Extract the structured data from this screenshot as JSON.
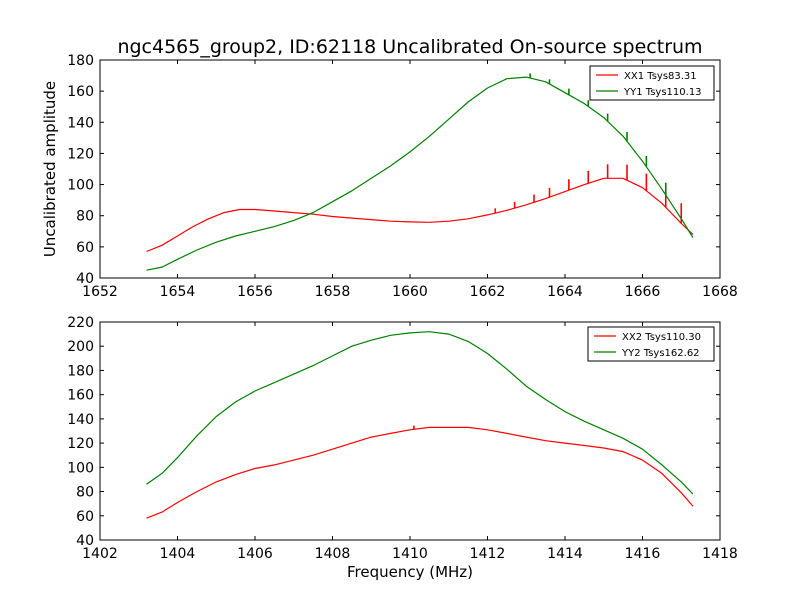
{
  "figure": {
    "title": "ngc4565_group2, ID:62118 Uncalibrated On-source spectrum",
    "xlabel": "Frequency (MHz)"
  },
  "chart_data": [
    {
      "type": "line",
      "title": "ngc4565_group2, ID:62118 Uncalibrated On-source spectrum",
      "xlabel": "",
      "ylabel": "Uncalibrated amplitude",
      "xlim": [
        1652,
        1668
      ],
      "ylim": [
        40,
        180
      ],
      "xticks": [
        1652,
        1654,
        1656,
        1658,
        1660,
        1662,
        1664,
        1666,
        1668
      ],
      "yticks": [
        40,
        60,
        80,
        100,
        120,
        140,
        160,
        180
      ],
      "legend_position": "top-right",
      "grid": false,
      "series": [
        {
          "name": "XX1 Tsys83.31",
          "color": "#ff0000",
          "points": [
            [
              1653.2,
              57
            ],
            [
              1653.6,
              61
            ],
            [
              1654.0,
              67
            ],
            [
              1654.4,
              73
            ],
            [
              1654.8,
              78
            ],
            [
              1655.2,
              82
            ],
            [
              1655.6,
              84
            ],
            [
              1656.0,
              84
            ],
            [
              1656.5,
              83
            ],
            [
              1657.0,
              82
            ],
            [
              1657.5,
              81
            ],
            [
              1658.0,
              79.5
            ],
            [
              1658.5,
              78.5
            ],
            [
              1659.0,
              77.5
            ],
            [
              1659.5,
              76.5
            ],
            [
              1660.0,
              76
            ],
            [
              1660.5,
              75.8
            ],
            [
              1661.0,
              76.5
            ],
            [
              1661.5,
              78
            ],
            [
              1662.0,
              80.5
            ],
            [
              1662.5,
              83.5
            ],
            [
              1663.0,
              87
            ],
            [
              1663.5,
              91
            ],
            [
              1664.0,
              95.5
            ],
            [
              1664.5,
              100
            ],
            [
              1665.0,
              104
            ],
            [
              1665.5,
              104
            ],
            [
              1666.0,
              98
            ],
            [
              1666.5,
              88
            ],
            [
              1667.0,
              75
            ],
            [
              1667.3,
              68
            ]
          ],
          "spikes": [
            [
              1662.2,
              3
            ],
            [
              1662.7,
              4
            ],
            [
              1663.2,
              5
            ],
            [
              1663.6,
              6
            ],
            [
              1664.1,
              7
            ],
            [
              1664.6,
              8
            ],
            [
              1665.1,
              9
            ],
            [
              1665.6,
              10
            ],
            [
              1666.1,
              11
            ],
            [
              1666.6,
              12
            ],
            [
              1667.0,
              13
            ]
          ]
        },
        {
          "name": "YY1 Tsys110.13",
          "color": "#008000",
          "points": [
            [
              1653.2,
              45
            ],
            [
              1653.6,
              47
            ],
            [
              1654.0,
              52
            ],
            [
              1654.5,
              58
            ],
            [
              1655.0,
              63
            ],
            [
              1655.5,
              67
            ],
            [
              1656.0,
              70
            ],
            [
              1656.5,
              73
            ],
            [
              1657.0,
              77
            ],
            [
              1657.5,
              82
            ],
            [
              1658.0,
              89
            ],
            [
              1658.5,
              96
            ],
            [
              1659.0,
              104
            ],
            [
              1659.5,
              112
            ],
            [
              1660.0,
              121
            ],
            [
              1660.5,
              131
            ],
            [
              1661.0,
              142
            ],
            [
              1661.5,
              153
            ],
            [
              1662.0,
              162
            ],
            [
              1662.5,
              168
            ],
            [
              1663.0,
              169
            ],
            [
              1663.5,
              166
            ],
            [
              1664.0,
              159
            ],
            [
              1664.5,
              152
            ],
            [
              1665.0,
              143
            ],
            [
              1665.5,
              131
            ],
            [
              1666.0,
              115
            ],
            [
              1666.5,
              97
            ],
            [
              1667.0,
              78
            ],
            [
              1667.3,
              66
            ]
          ],
          "spikes": [
            [
              1663.1,
              3
            ],
            [
              1663.6,
              3
            ],
            [
              1664.1,
              4
            ],
            [
              1664.6,
              4
            ],
            [
              1665.1,
              5
            ],
            [
              1665.6,
              6
            ],
            [
              1666.1,
              7
            ],
            [
              1666.6,
              8
            ]
          ]
        }
      ]
    },
    {
      "type": "line",
      "title": "",
      "xlabel": "Frequency (MHz)",
      "ylabel": "",
      "xlim": [
        1402,
        1418
      ],
      "ylim": [
        40,
        220
      ],
      "xticks": [
        1402,
        1404,
        1406,
        1408,
        1410,
        1412,
        1414,
        1416,
        1418
      ],
      "yticks": [
        40,
        60,
        80,
        100,
        120,
        140,
        160,
        180,
        200,
        220
      ],
      "legend_position": "top-right",
      "grid": false,
      "series": [
        {
          "name": "XX2 Tsys110.30",
          "color": "#ff0000",
          "points": [
            [
              1403.2,
              58
            ],
            [
              1403.6,
              63
            ],
            [
              1404.0,
              71
            ],
            [
              1404.5,
              80
            ],
            [
              1405.0,
              88
            ],
            [
              1405.5,
              94
            ],
            [
              1406.0,
              99
            ],
            [
              1406.5,
              102
            ],
            [
              1407.0,
              106
            ],
            [
              1407.5,
              110
            ],
            [
              1408.0,
              115
            ],
            [
              1408.5,
              120
            ],
            [
              1409.0,
              125
            ],
            [
              1409.5,
              128
            ],
            [
              1410.0,
              131
            ],
            [
              1410.5,
              133
            ],
            [
              1411.0,
              133
            ],
            [
              1411.5,
              133
            ],
            [
              1412.0,
              131
            ],
            [
              1412.5,
              128
            ],
            [
              1413.0,
              125
            ],
            [
              1413.5,
              122
            ],
            [
              1414.0,
              120
            ],
            [
              1414.5,
              118
            ],
            [
              1415.0,
              116
            ],
            [
              1415.5,
              113
            ],
            [
              1416.0,
              106
            ],
            [
              1416.5,
              95
            ],
            [
              1417.0,
              79
            ],
            [
              1417.3,
              68
            ]
          ],
          "spikes": [
            [
              1410.1,
              3
            ]
          ]
        },
        {
          "name": "YY2 Tsys162.62",
          "color": "#008000",
          "points": [
            [
              1403.2,
              86
            ],
            [
              1403.6,
              95
            ],
            [
              1404.0,
              108
            ],
            [
              1404.5,
              126
            ],
            [
              1405.0,
              142
            ],
            [
              1405.5,
              154
            ],
            [
              1406.0,
              163
            ],
            [
              1406.5,
              170
            ],
            [
              1407.0,
              177
            ],
            [
              1407.5,
              184
            ],
            [
              1408.0,
              192
            ],
            [
              1408.5,
              200
            ],
            [
              1409.0,
              205
            ],
            [
              1409.5,
              209
            ],
            [
              1410.0,
              211
            ],
            [
              1410.5,
              212
            ],
            [
              1411.0,
              210
            ],
            [
              1411.5,
              204
            ],
            [
              1412.0,
              194
            ],
            [
              1412.5,
              181
            ],
            [
              1413.0,
              167
            ],
            [
              1413.5,
              156
            ],
            [
              1414.0,
              146
            ],
            [
              1414.5,
              138
            ],
            [
              1415.0,
              131
            ],
            [
              1415.5,
              124
            ],
            [
              1416.0,
              115
            ],
            [
              1416.5,
              102
            ],
            [
              1417.0,
              88
            ],
            [
              1417.3,
              78
            ]
          ],
          "spikes": []
        }
      ]
    }
  ]
}
